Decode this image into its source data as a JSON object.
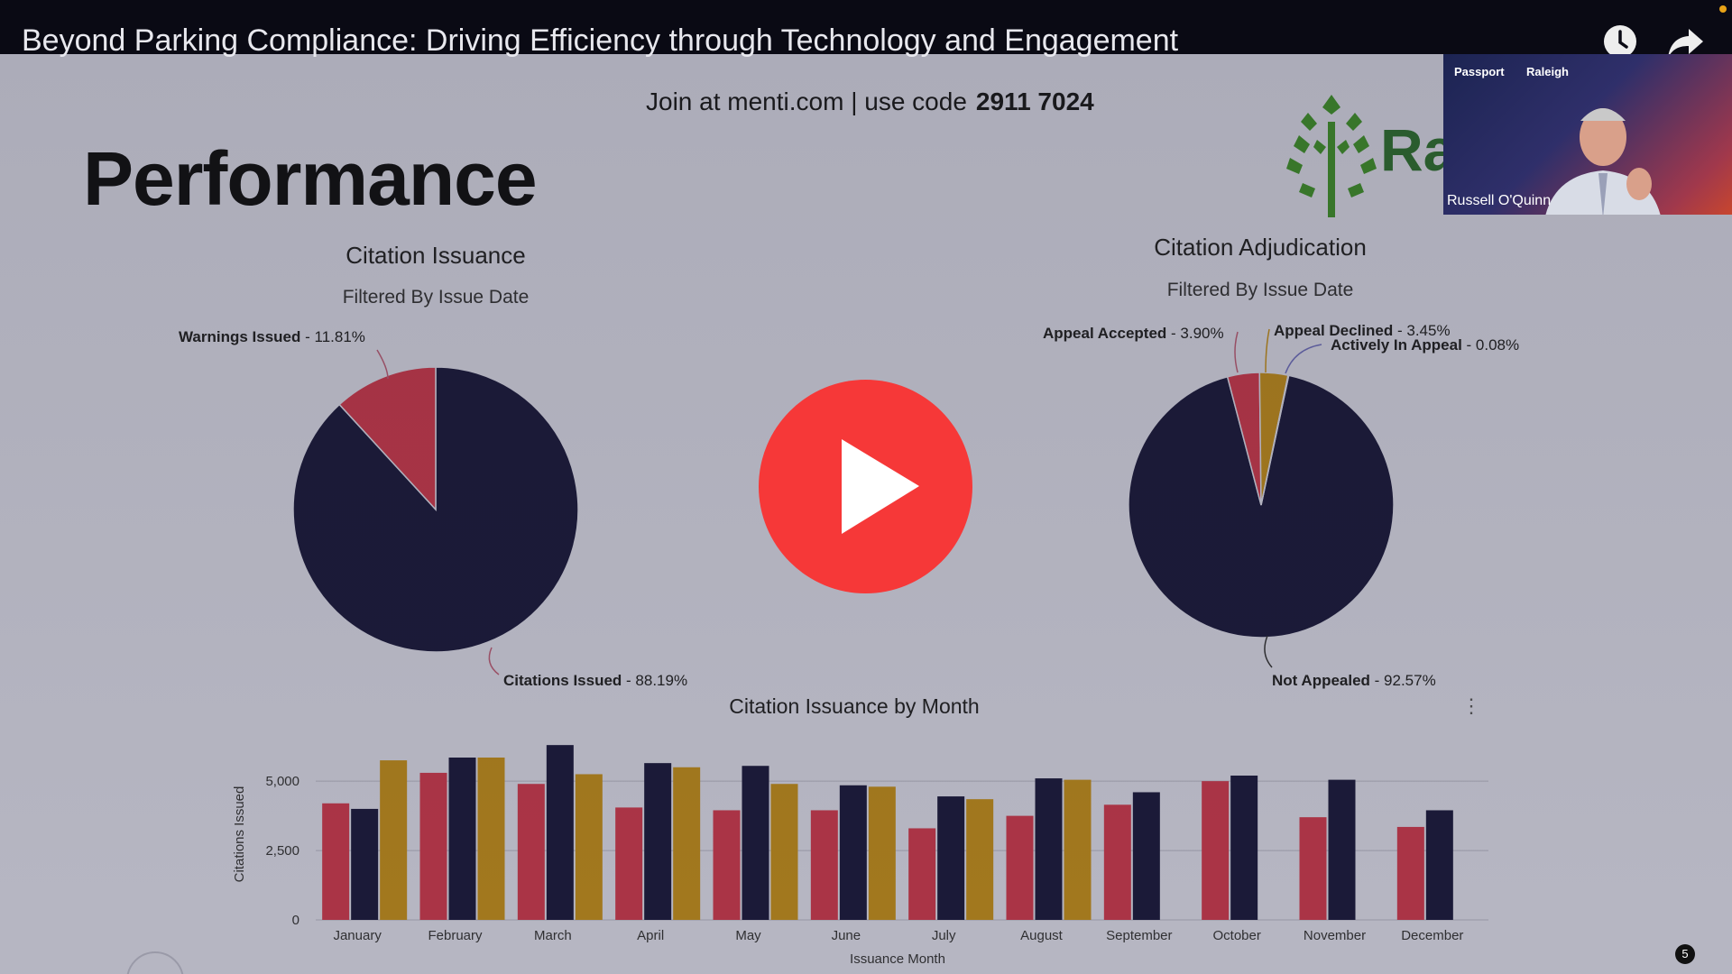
{
  "video": {
    "title": "Beyond Parking Compliance: Driving Efficiency through Technology and Engagement",
    "icons": [
      "clock-icon",
      "share-icon"
    ]
  },
  "slide": {
    "join_text": "Join at menti.com | use code",
    "join_code": "2911 7024",
    "heading": "Performance",
    "logo_text": "Ra",
    "page_badge": "5"
  },
  "pie_issuance": {
    "title": "Citation Issuance",
    "subtitle": "Filtered By Issue Date",
    "labels": [
      {
        "name": "Warnings Issued",
        "pct": " - 11.81%"
      },
      {
        "name": "Citations Issued",
        "pct": " - 88.19%"
      }
    ]
  },
  "pie_adjudication": {
    "title": "Citation Adjudication",
    "subtitle": "Filtered By Issue Date",
    "labels": [
      {
        "name": "Appeal Accepted",
        "pct": " - 3.90%"
      },
      {
        "name": "Appeal Declined",
        "pct": " - 3.45%"
      },
      {
        "name": "Actively In Appeal",
        "pct": " - 0.08%"
      },
      {
        "name": "Not Appealed",
        "pct": " - 92.57%"
      }
    ]
  },
  "webcam": {
    "brand_left": "Passport",
    "brand_right": "Raleigh",
    "speaker": "Russell O'Quinn"
  },
  "colors": {
    "navy": "#1c1b3a",
    "red": "#c0394a",
    "gold": "#b6861d",
    "play": "#f63838"
  },
  "chart_data": [
    {
      "type": "pie",
      "title": "Citation Issuance",
      "subtitle": "Filtered By Issue Date",
      "slices": [
        {
          "label": "Citations Issued",
          "value": 88.19,
          "color": "#1c1b3a"
        },
        {
          "label": "Warnings Issued",
          "value": 11.81,
          "color": "#c0394a"
        }
      ]
    },
    {
      "type": "pie",
      "title": "Citation Adjudication",
      "subtitle": "Filtered By Issue Date",
      "slices": [
        {
          "label": "Not Appealed",
          "value": 92.57,
          "color": "#1c1b3a"
        },
        {
          "label": "Appeal Accepted",
          "value": 3.9,
          "color": "#c0394a"
        },
        {
          "label": "Appeal Declined",
          "value": 3.45,
          "color": "#b6861d"
        },
        {
          "label": "Actively In Appeal",
          "value": 0.08,
          "color": "#3a3a8a"
        }
      ]
    },
    {
      "type": "bar",
      "title": "Citation Issuance by Month",
      "xlabel": "Issuance Month",
      "ylabel": "Citations Issued",
      "ylim": [
        0,
        6500
      ],
      "yticks": [
        0,
        2500,
        5000
      ],
      "ytick_labels": [
        "0",
        "2,500",
        "5,000"
      ],
      "grid": true,
      "categories": [
        "January",
        "February",
        "March",
        "April",
        "May",
        "June",
        "July",
        "August",
        "September",
        "October",
        "November",
        "December"
      ],
      "series": [
        {
          "color": "#c0394a",
          "values": [
            4200,
            5300,
            4900,
            4050,
            3950,
            3950,
            3300,
            3750,
            4150,
            5000,
            3700,
            3350
          ]
        },
        {
          "color": "#1c1b3a",
          "values": [
            4000,
            5850,
            6300,
            5650,
            5550,
            4850,
            4450,
            5100,
            4600,
            5200,
            5050,
            3950
          ]
        },
        {
          "color": "#b6861d",
          "values": [
            5750,
            5850,
            5250,
            5500,
            4900,
            4800,
            4350,
            5050,
            null,
            null,
            null,
            null
          ]
        }
      ]
    }
  ]
}
